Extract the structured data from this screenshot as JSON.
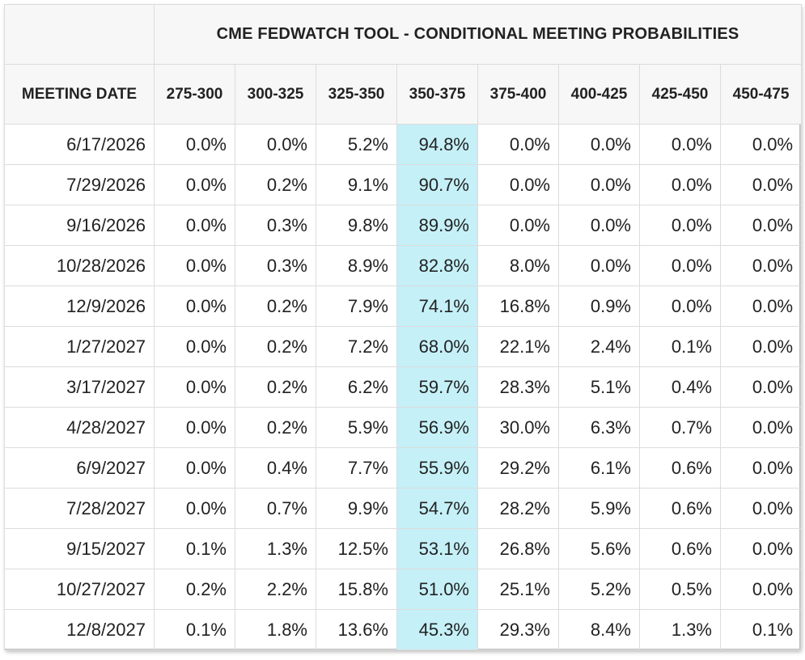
{
  "table": {
    "title": "CME FEDWATCH TOOL - CONDITIONAL MEETING PROBABILITIES",
    "date_header": "MEETING DATE",
    "columns": [
      "275-300",
      "300-325",
      "325-350",
      "350-375",
      "375-400",
      "400-425",
      "425-450",
      "450-475"
    ],
    "highlight_column": "350-375",
    "highlight_color": "#c5f0f7",
    "rows": [
      {
        "date": "6/17/2026",
        "values": [
          "0.0%",
          "0.0%",
          "5.2%",
          "94.8%",
          "0.0%",
          "0.0%",
          "0.0%",
          "0.0%"
        ]
      },
      {
        "date": "7/29/2026",
        "values": [
          "0.0%",
          "0.2%",
          "9.1%",
          "90.7%",
          "0.0%",
          "0.0%",
          "0.0%",
          "0.0%"
        ]
      },
      {
        "date": "9/16/2026",
        "values": [
          "0.0%",
          "0.3%",
          "9.8%",
          "89.9%",
          "0.0%",
          "0.0%",
          "0.0%",
          "0.0%"
        ]
      },
      {
        "date": "10/28/2026",
        "values": [
          "0.0%",
          "0.3%",
          "8.9%",
          "82.8%",
          "8.0%",
          "0.0%",
          "0.0%",
          "0.0%"
        ]
      },
      {
        "date": "12/9/2026",
        "values": [
          "0.0%",
          "0.2%",
          "7.9%",
          "74.1%",
          "16.8%",
          "0.9%",
          "0.0%",
          "0.0%"
        ]
      },
      {
        "date": "1/27/2027",
        "values": [
          "0.0%",
          "0.2%",
          "7.2%",
          "68.0%",
          "22.1%",
          "2.4%",
          "0.1%",
          "0.0%"
        ]
      },
      {
        "date": "3/17/2027",
        "values": [
          "0.0%",
          "0.2%",
          "6.2%",
          "59.7%",
          "28.3%",
          "5.1%",
          "0.4%",
          "0.0%"
        ]
      },
      {
        "date": "4/28/2027",
        "values": [
          "0.0%",
          "0.2%",
          "5.9%",
          "56.9%",
          "30.0%",
          "6.3%",
          "0.7%",
          "0.0%"
        ]
      },
      {
        "date": "6/9/2027",
        "values": [
          "0.0%",
          "0.4%",
          "7.7%",
          "55.9%",
          "29.2%",
          "6.1%",
          "0.6%",
          "0.0%"
        ]
      },
      {
        "date": "7/28/2027",
        "values": [
          "0.0%",
          "0.7%",
          "9.9%",
          "54.7%",
          "28.2%",
          "5.9%",
          "0.6%",
          "0.0%"
        ]
      },
      {
        "date": "9/15/2027",
        "values": [
          "0.1%",
          "1.3%",
          "12.5%",
          "53.1%",
          "26.8%",
          "5.6%",
          "0.6%",
          "0.0%"
        ]
      },
      {
        "date": "10/27/2027",
        "values": [
          "0.2%",
          "2.2%",
          "15.8%",
          "51.0%",
          "25.1%",
          "5.2%",
          "0.5%",
          "0.0%"
        ]
      },
      {
        "date": "12/8/2027",
        "values": [
          "0.1%",
          "1.8%",
          "13.6%",
          "45.3%",
          "29.3%",
          "8.4%",
          "1.3%",
          "0.1%"
        ]
      }
    ]
  }
}
